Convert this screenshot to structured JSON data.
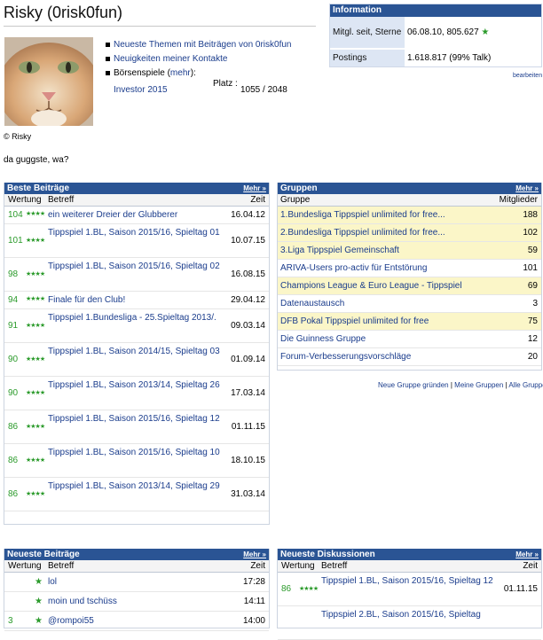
{
  "header": {
    "title": "Risky (0risk0fun)"
  },
  "avatar": {
    "caption": "© Risky"
  },
  "status_text": "da guggste, wa?",
  "profile_links": [
    "Neueste Themen mit Beiträgen von 0risk0fun",
    "Neuigkeiten meiner Kontakte"
  ],
  "boersenspiele": {
    "label": "Börsenspiele",
    "mehr": "mehr",
    "mehr_open": " (",
    "mehr_close": "):"
  },
  "investor": {
    "link": "Investor 2015",
    "platz_label": "Platz :",
    "platz_value": "1055 / 2048"
  },
  "info": {
    "header": "Information",
    "rows": [
      {
        "label": "Mitgl. seit, Sterne",
        "value": "06.08.10, 805.627"
      },
      {
        "label": "Postings",
        "value": "1.618.817 (99% Talk)"
      }
    ],
    "edit_link": "bearbeiten"
  },
  "beste_beitraege": {
    "title": "Beste Beiträge",
    "more": "Mehr »",
    "col_wertung": "Wertung",
    "col_betreff": "Betreff",
    "col_zeit": "Zeit",
    "rows": [
      {
        "rating": "104",
        "subject": "ein weiterer Dreier der Glubberer",
        "time": "16.04.12"
      },
      {
        "rating": "101",
        "subject": "Tippspiel 1.BL, Saison 2015/16, Spieltag 01",
        "time": "10.07.15"
      },
      {
        "rating": "98",
        "subject": "Tippspiel 1.BL, Saison 2015/16, Spieltag 02",
        "time": "16.08.15"
      },
      {
        "rating": "94",
        "subject": "Finale für den Club!",
        "time": "29.04.12"
      },
      {
        "rating": "91",
        "subject": "Tippspiel 1.Bundesliga - 25.Spieltag 2013/.",
        "time": "09.03.14"
      },
      {
        "rating": "90",
        "subject": "Tippspiel 1.BL, Saison 2014/15, Spieltag 03",
        "time": "01.09.14"
      },
      {
        "rating": "90",
        "subject": "Tippspiel 1.BL, Saison 2013/14, Spieltag 26",
        "time": "17.03.14"
      },
      {
        "rating": "86",
        "subject": "Tippspiel 1.BL, Saison 2015/16, Spieltag 12",
        "time": "01.11.15"
      },
      {
        "rating": "86",
        "subject": "Tippspiel 1.BL, Saison 2015/16, Spieltag 10",
        "time": "18.10.15"
      },
      {
        "rating": "86",
        "subject": "Tippspiel 1.BL, Saison 2013/14, Spieltag 29",
        "time": "31.03.14"
      }
    ]
  },
  "gruppen": {
    "title": "Gruppen",
    "more": "Mehr »",
    "col_gruppe": "Gruppe",
    "col_mitglieder": "Mitglieder",
    "rows": [
      {
        "name": "1.Bundesliga Tippspiel unlimited for free...",
        "count": "188",
        "highlight": true
      },
      {
        "name": "2.Bundesliga Tippspiel unlimited for free...",
        "count": "102",
        "highlight": true
      },
      {
        "name": "3.Liga Tippspiel Gemeinschaft",
        "count": "59",
        "highlight": true
      },
      {
        "name": "ARIVA-Users pro-activ für Entstörung",
        "count": "101",
        "highlight": false
      },
      {
        "name": "Champions League & Euro League - Tippspiel",
        "count": "69",
        "highlight": true
      },
      {
        "name": "Datenaustausch",
        "count": "3",
        "highlight": false
      },
      {
        "name": "DFB Pokal Tippspiel unlimited for free",
        "count": "75",
        "highlight": true
      },
      {
        "name": "Die Guinness Gruppe",
        "count": "12",
        "highlight": false
      },
      {
        "name": "Forum-Verbesserungsvorschläge",
        "count": "20",
        "highlight": false
      }
    ],
    "links": {
      "new": "Neue Gruppe gründen",
      "mine": "Meine Gruppen",
      "all": "Alle Gruppen",
      "sep": " | "
    }
  },
  "neueste_beitraege": {
    "title": "Neueste Beiträge",
    "more": "Mehr »",
    "col_wertung": "Wertung",
    "col_betreff": "Betreff",
    "col_zeit": "Zeit",
    "rows": [
      {
        "rating": "",
        "stars": "★",
        "subject": "lol",
        "time": "17:28"
      },
      {
        "rating": "",
        "stars": "★",
        "subject": "moin und tschüss",
        "time": "14:11"
      },
      {
        "rating": "3",
        "stars": "★",
        "subject": "@rompoi55",
        "time": "14:00"
      }
    ]
  },
  "neueste_diskussionen": {
    "title": "Neueste Diskussionen",
    "more": "Mehr »",
    "col_wertung": "Wertung",
    "col_betreff": "Betreff",
    "col_zeit": "Zeit",
    "rows": [
      {
        "rating": "86",
        "subject": "Tippspiel 1.BL, Saison 2015/16, Spieltag 12",
        "time": "01.11.15"
      },
      {
        "rating": "",
        "subject": "Tippspiel 2.BL, Saison 2015/16, Spieltag",
        "time": ""
      }
    ]
  },
  "colors": {
    "header_bg": "#2a5494",
    "link": "#1a3c8c",
    "rating_green": "#2a9a2a",
    "highlight": "#fbf6c8"
  },
  "icons": {
    "star": "★",
    "rating_stars": "★★★★"
  }
}
